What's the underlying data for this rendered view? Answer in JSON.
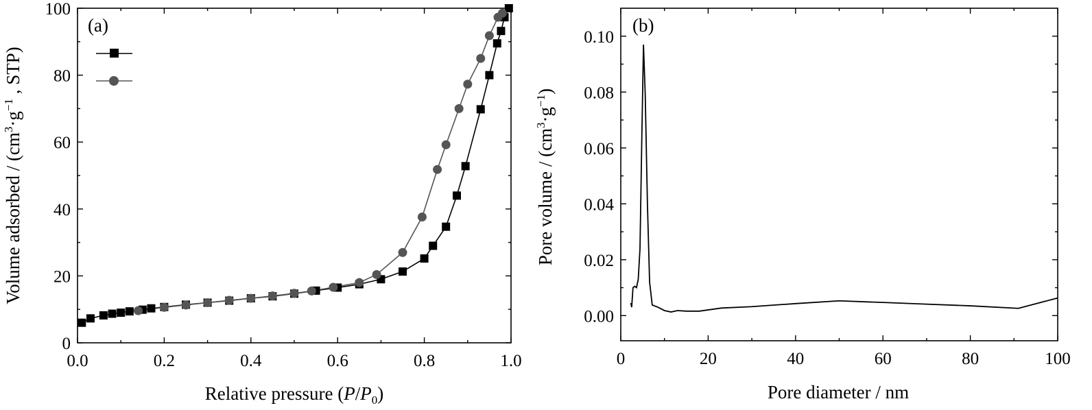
{
  "chart_data": [
    {
      "type": "scatter",
      "panel_label": "(a)",
      "xlabel": {
        "prefix": "Relative pressure (",
        "var1": "P",
        "slash": "/",
        "var2": "P",
        "sub": "0",
        "suffix": ")"
      },
      "ylabel": {
        "pre": "Volume adsorbed / (cm",
        "sup1": "3",
        "mid1": "·g",
        "sup2": "−1",
        "post": " ,  STP)"
      },
      "xlim": [
        0,
        1.0
      ],
      "ylim": [
        0,
        100
      ],
      "xticks": [
        "0.0",
        "0.2",
        "0.4",
        "0.6",
        "0.8",
        "1.0"
      ],
      "xtick_values": [
        0,
        0.2,
        0.4,
        0.6,
        0.8,
        1.0
      ],
      "yticks": [
        "0",
        "20",
        "40",
        "60",
        "80",
        "100"
      ],
      "ytick_values": [
        0,
        20,
        40,
        60,
        80,
        100
      ],
      "legend_position": "top-left",
      "series": [
        {
          "marker": "square",
          "color": "#000000",
          "points": [
            [
              0.01,
              6.0
            ],
            [
              0.03,
              7.3
            ],
            [
              0.06,
              8.2
            ],
            [
              0.08,
              8.7
            ],
            [
              0.1,
              9.0
            ],
            [
              0.12,
              9.4
            ],
            [
              0.15,
              9.9
            ],
            [
              0.17,
              10.3
            ],
            [
              0.2,
              10.7
            ],
            [
              0.25,
              11.4
            ],
            [
              0.3,
              12.0
            ],
            [
              0.35,
              12.6
            ],
            [
              0.4,
              13.3
            ],
            [
              0.45,
              13.9
            ],
            [
              0.5,
              14.7
            ],
            [
              0.55,
              15.6
            ],
            [
              0.6,
              16.5
            ],
            [
              0.65,
              17.5
            ],
            [
              0.7,
              19.0
            ],
            [
              0.75,
              21.3
            ],
            [
              0.8,
              25.2
            ],
            [
              0.82,
              29.0
            ],
            [
              0.85,
              34.7
            ],
            [
              0.875,
              44.0
            ],
            [
              0.895,
              52.8
            ],
            [
              0.93,
              69.8
            ],
            [
              0.95,
              80.0
            ],
            [
              0.968,
              89.5
            ],
            [
              0.977,
              93.2
            ],
            [
              0.985,
              97.3
            ],
            [
              0.995,
              100.0
            ]
          ]
        },
        {
          "marker": "circle",
          "color": "#555555",
          "points": [
            [
              0.14,
              9.6
            ],
            [
              0.2,
              10.6
            ],
            [
              0.25,
              11.3
            ],
            [
              0.3,
              12.0
            ],
            [
              0.35,
              12.7
            ],
            [
              0.4,
              13.3
            ],
            [
              0.45,
              14.0
            ],
            [
              0.5,
              14.8
            ],
            [
              0.54,
              15.5
            ],
            [
              0.59,
              16.6
            ],
            [
              0.65,
              18.0
            ],
            [
              0.69,
              20.4
            ],
            [
              0.75,
              27.0
            ],
            [
              0.795,
              37.6
            ],
            [
              0.83,
              51.8
            ],
            [
              0.85,
              59.2
            ],
            [
              0.88,
              70.0
            ],
            [
              0.9,
              77.3
            ],
            [
              0.93,
              85.0
            ],
            [
              0.95,
              91.8
            ],
            [
              0.97,
              97.3
            ],
            [
              0.98,
              98.5
            ]
          ]
        }
      ]
    },
    {
      "type": "line",
      "panel_label": "(b)",
      "xlabel": {
        "text": "Pore diameter / nm"
      },
      "ylabel": {
        "pre": "Pore volume / (cm",
        "sup1": "3",
        "mid1": "·g",
        "sup2": "−1",
        "post": ")"
      },
      "xlim": [
        0,
        100
      ],
      "ylim": [
        -0.009,
        0.11
      ],
      "xticks": [
        "0",
        "20",
        "40",
        "60",
        "80",
        "100"
      ],
      "xtick_values": [
        0,
        20,
        40,
        60,
        80,
        100
      ],
      "yticks": [
        "0.00",
        "0.02",
        "0.04",
        "0.06",
        "0.08",
        "0.10"
      ],
      "ytick_values": [
        0,
        0.02,
        0.04,
        0.06,
        0.08,
        0.1
      ],
      "series": [
        {
          "color": "#000000",
          "points": [
            [
              2.3,
              0.0045
            ],
            [
              2.5,
              0.003
            ],
            [
              2.8,
              0.01
            ],
            [
              3.2,
              0.0105
            ],
            [
              3.6,
              0.01
            ],
            [
              4.0,
              0.013
            ],
            [
              4.4,
              0.024
            ],
            [
              4.8,
              0.062
            ],
            [
              5.2,
              0.097
            ],
            [
              5.6,
              0.079
            ],
            [
              6.1,
              0.04
            ],
            [
              6.6,
              0.012
            ],
            [
              7.2,
              0.0038
            ],
            [
              8.5,
              0.003
            ],
            [
              10,
              0.0018
            ],
            [
              11.5,
              0.0013
            ],
            [
              13,
              0.0018
            ],
            [
              15,
              0.0016
            ],
            [
              18,
              0.0016
            ],
            [
              23,
              0.0027
            ],
            [
              30,
              0.0032
            ],
            [
              40,
              0.0043
            ],
            [
              50,
              0.0053
            ],
            [
              60,
              0.0047
            ],
            [
              70,
              0.0041
            ],
            [
              80,
              0.0035
            ],
            [
              91,
              0.0026
            ],
            [
              100,
              0.0063
            ]
          ]
        }
      ]
    }
  ]
}
